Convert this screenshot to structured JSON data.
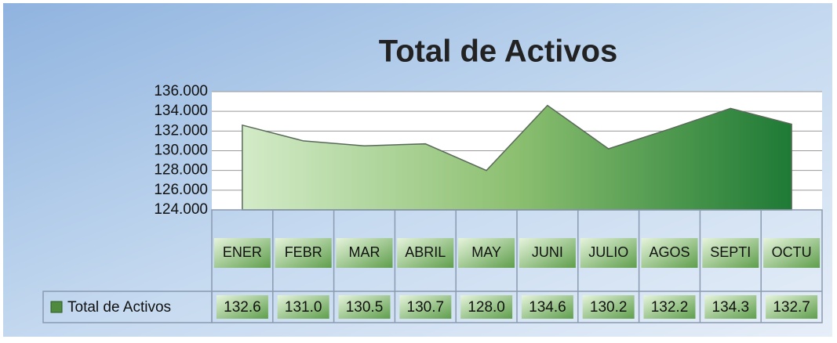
{
  "chart_data": {
    "type": "area",
    "title": "Total de Activos",
    "categories": [
      "ENER",
      "FEBR",
      "MAR",
      "ABRIL",
      "MAY",
      "JUNI",
      "JULIO",
      "AGOS",
      "SEPTI",
      "OCTU"
    ],
    "series": [
      {
        "name": "Total de Activos",
        "color": "#4f8a3f",
        "values": [
          132600,
          131000,
          130500,
          130700,
          128000,
          134600,
          130200,
          132200,
          134300,
          132700
        ],
        "value_labels": [
          "132.6",
          "131.0",
          "130.5",
          "130.7",
          "128.0",
          "134.6",
          "130.2",
          "132.2",
          "134.3",
          "132.7"
        ]
      }
    ],
    "ylim": [
      124000,
      136000
    ],
    "yticks": [
      {
        "value": 124000,
        "label": "124.000"
      },
      {
        "value": 126000,
        "label": "126.000"
      },
      {
        "value": 128000,
        "label": "128.000"
      },
      {
        "value": 130000,
        "label": "130.000"
      },
      {
        "value": 132000,
        "label": "132.000"
      },
      {
        "value": 134000,
        "label": "134.000"
      },
      {
        "value": 136000,
        "label": "136.000"
      }
    ],
    "grid": true
  }
}
